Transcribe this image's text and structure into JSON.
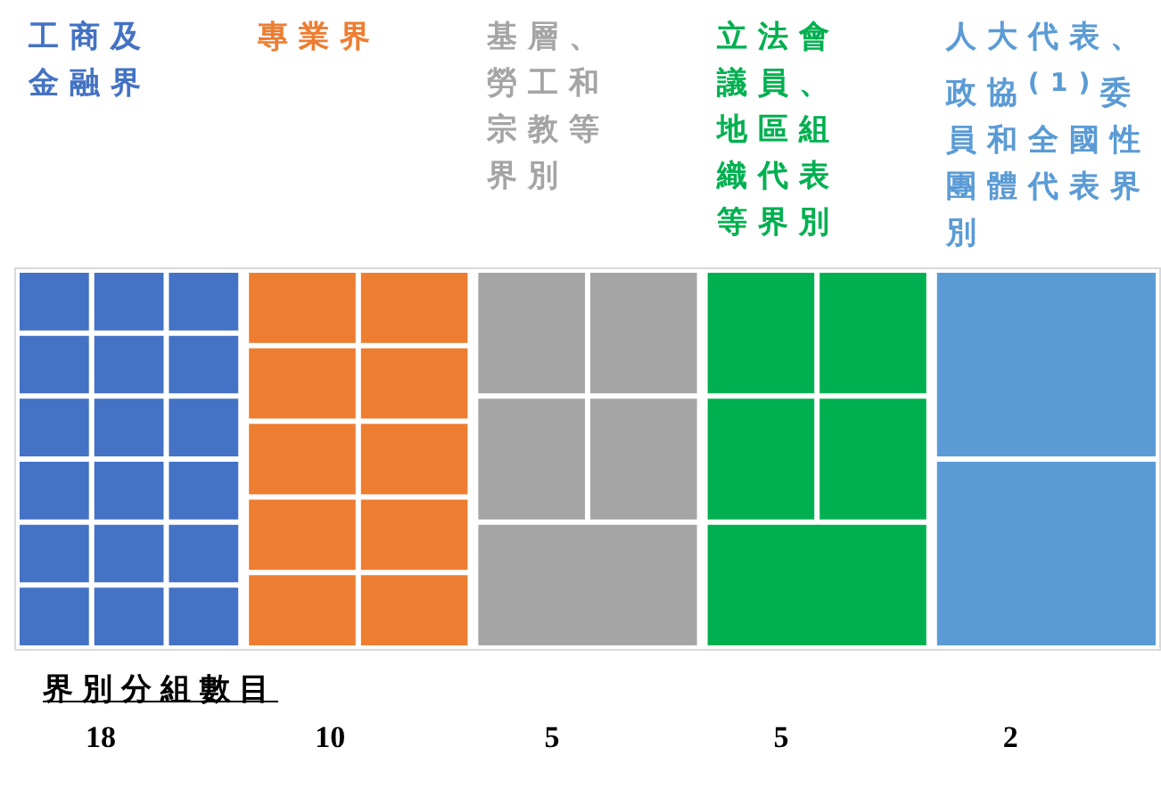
{
  "chart_data": {
    "type": "other",
    "categories": [
      "工商及金融界",
      "專業界",
      "基層、勞工和宗教等界別",
      "立法會議員、地區組織代表等界別",
      "人大代表、政協$^{(1)}$委員和全國性團體代表界別"
    ],
    "values": [
      18,
      10,
      5,
      5,
      2
    ],
    "colors": [
      "#4472c4",
      "#ed7d31",
      "#a5a5a5",
      "#00b050",
      "#5b9bd5"
    ],
    "xlabel": "界別分組數目",
    "data_labels": true
  }
}
